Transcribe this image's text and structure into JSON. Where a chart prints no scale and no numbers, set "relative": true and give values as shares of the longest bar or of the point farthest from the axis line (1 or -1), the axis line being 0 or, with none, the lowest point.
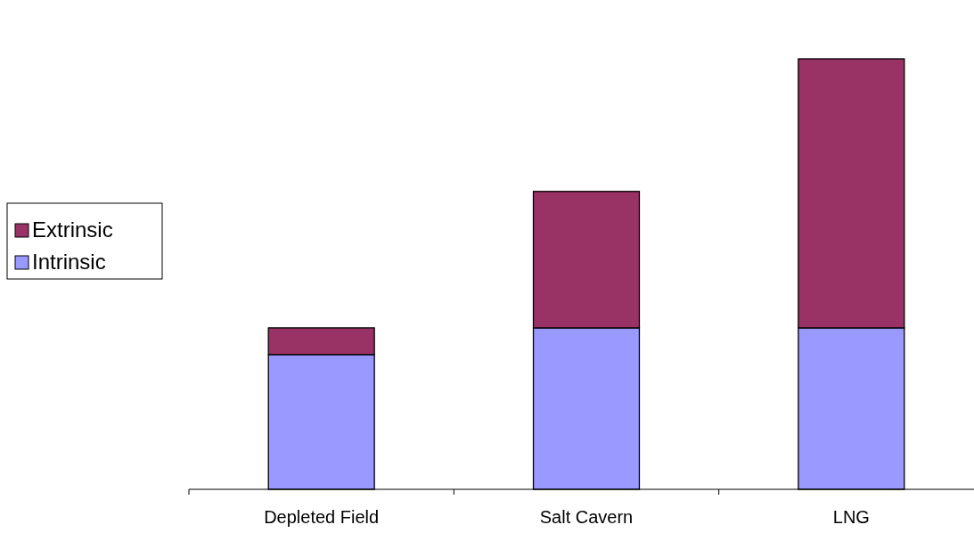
{
  "chart_data": {
    "type": "bar",
    "stacked": true,
    "relative": true,
    "categories": [
      "Depleted Field",
      "Salt Cavern",
      "LNG"
    ],
    "series": [
      {
        "name": "Intrinsic",
        "color": "#9999ff",
        "values": [
          0.313,
          0.375,
          0.375
        ]
      },
      {
        "name": "Extrinsic",
        "color": "#993366",
        "values": [
          0.062,
          0.317,
          0.625
        ]
      }
    ],
    "legend": "left"
  }
}
